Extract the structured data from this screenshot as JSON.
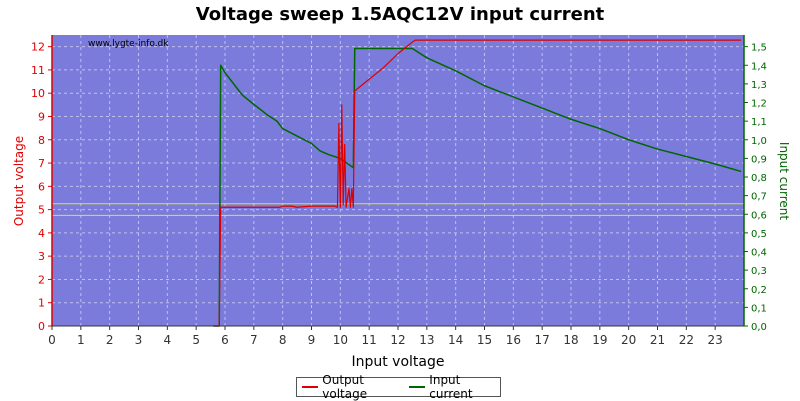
{
  "chart_data": {
    "type": "line",
    "title": "Voltage sweep 1.5AQC12V input current",
    "watermark": "www.lygte-info.dk",
    "xlabel": "Input voltage",
    "ylabel_left": "Output voltage",
    "ylabel_right": "Input current",
    "xlim": [
      0,
      24
    ],
    "ylim_left": [
      0,
      12.5
    ],
    "ylim_right": [
      0,
      1.5625
    ],
    "x_ticks": [
      "0",
      "1",
      "2",
      "3",
      "4",
      "5",
      "6",
      "7",
      "8",
      "9",
      "10",
      "11",
      "12",
      "13",
      "14",
      "15",
      "16",
      "17",
      "18",
      "19",
      "20",
      "21",
      "22",
      "23"
    ],
    "y_left_ticks": [
      0,
      1,
      2,
      3,
      4,
      5,
      6,
      7,
      8,
      9,
      10,
      11,
      12
    ],
    "y_right_ticks": [
      "0,0",
      "0,1",
      "0,2",
      "0,3",
      "0,4",
      "0,5",
      "0,6",
      "0,7",
      "0,8",
      "0,9",
      "1,0",
      "1,1",
      "1,2",
      "1,3",
      "1,4",
      "1,5"
    ],
    "grid": true,
    "legend_position": "bottom-center",
    "reference_lines_left": [
      4.75,
      5.25
    ],
    "colors": {
      "plot_bg": "#7b7bdc",
      "output_voltage": "#dd0000",
      "input_current": "#006600",
      "reference": "#e8e800",
      "grid": "#c0c0ee"
    },
    "series": [
      {
        "name": "Output voltage",
        "axis": "left",
        "points": [
          [
            5.6,
            0.0
          ],
          [
            5.8,
            0.0
          ],
          [
            5.85,
            5.1
          ],
          [
            6.5,
            5.1
          ],
          [
            7.0,
            5.1
          ],
          [
            7.5,
            5.1
          ],
          [
            7.9,
            5.1
          ],
          [
            8.0,
            5.15
          ],
          [
            8.3,
            5.15
          ],
          [
            8.5,
            5.1
          ],
          [
            9.0,
            5.15
          ],
          [
            9.5,
            5.15
          ],
          [
            9.8,
            5.15
          ],
          [
            9.9,
            5.1
          ],
          [
            9.95,
            8.7
          ],
          [
            10.0,
            5.1
          ],
          [
            10.05,
            9.5
          ],
          [
            10.1,
            5.2
          ],
          [
            10.15,
            7.8
          ],
          [
            10.2,
            5.1
          ],
          [
            10.3,
            5.9
          ],
          [
            10.35,
            5.1
          ],
          [
            10.4,
            5.9
          ],
          [
            10.45,
            5.1
          ],
          [
            10.5,
            10.1
          ],
          [
            11.0,
            10.6
          ],
          [
            11.5,
            11.1
          ],
          [
            12.0,
            11.7
          ],
          [
            12.5,
            12.2
          ],
          [
            12.6,
            12.28
          ],
          [
            13.0,
            12.28
          ],
          [
            15.0,
            12.28
          ],
          [
            18.0,
            12.28
          ],
          [
            21.0,
            12.28
          ],
          [
            23.9,
            12.28
          ]
        ]
      },
      {
        "name": "Input current",
        "axis": "right",
        "points": [
          [
            5.6,
            0.0
          ],
          [
            5.8,
            0.0
          ],
          [
            5.85,
            1.4
          ],
          [
            6.0,
            1.36
          ],
          [
            6.3,
            1.3
          ],
          [
            6.6,
            1.24
          ],
          [
            7.0,
            1.19
          ],
          [
            7.5,
            1.13
          ],
          [
            7.8,
            1.1
          ],
          [
            8.0,
            1.06
          ],
          [
            8.5,
            1.02
          ],
          [
            9.0,
            0.98
          ],
          [
            9.3,
            0.94
          ],
          [
            9.6,
            0.92
          ],
          [
            10.0,
            0.9
          ],
          [
            10.45,
            0.85
          ],
          [
            10.5,
            1.49
          ],
          [
            12.5,
            1.49
          ],
          [
            13.0,
            1.44
          ],
          [
            14.0,
            1.37
          ],
          [
            15.0,
            1.29
          ],
          [
            16.0,
            1.23
          ],
          [
            17.0,
            1.17
          ],
          [
            18.0,
            1.11
          ],
          [
            19.0,
            1.06
          ],
          [
            20.0,
            1.0
          ],
          [
            21.0,
            0.95
          ],
          [
            22.0,
            0.91
          ],
          [
            23.0,
            0.87
          ],
          [
            23.9,
            0.83
          ]
        ]
      }
    ]
  }
}
